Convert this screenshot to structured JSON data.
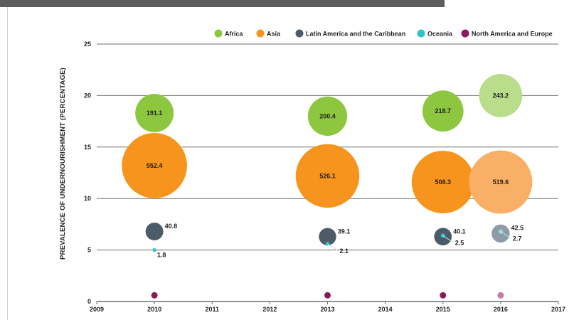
{
  "colors": {
    "Africa": "#8dc63f",
    "Asia": "#f7941d",
    "Latin America and the Caribbean": "#4b5b68",
    "Oceania": "#2ec4c4",
    "North America and Europe": "#8b1a5c",
    "Africa_proj": "#b9dd8b",
    "Asia_proj": "#f9b066",
    "Latin America and the Caribbean_proj": "#8e9aa6",
    "Oceania_proj": "#88dede",
    "North America and Europe_proj": "#c67aa6"
  },
  "chart_data": {
    "type": "scatter",
    "subtype": "bubble",
    "title": "",
    "xlabel": "",
    "ylabel": "PREVALENCE OF UNDERNOURISHMENT (PERCENTAGE)",
    "x_ticks": [
      "2009",
      "2010",
      "2011",
      "2012",
      "2013",
      "2014",
      "2015",
      "2016",
      "2017"
    ],
    "y_ticks": [
      "0",
      "5",
      "10",
      "15",
      "20",
      "25"
    ],
    "xlim": [
      2009,
      2017
    ],
    "ylim": [
      0,
      25
    ],
    "grid": true,
    "legend_position": "top-right",
    "bubble_size_meaning": "number of undernourished people (millions)",
    "projected_year": 2016,
    "series": [
      {
        "name": "Africa",
        "points": [
          {
            "x": 2010,
            "y": 18.3,
            "size": 191.1,
            "label": "191.1"
          },
          {
            "x": 2013,
            "y": 18.0,
            "size": 200.4,
            "label": "200.4"
          },
          {
            "x": 2015,
            "y": 18.5,
            "size": 218.7,
            "label": "218.7"
          },
          {
            "x": 2016,
            "y": 20.0,
            "size": 243.2,
            "label": "243.2"
          }
        ]
      },
      {
        "name": "Asia",
        "points": [
          {
            "x": 2010,
            "y": 13.2,
            "size": 552.4,
            "label": "552.4"
          },
          {
            "x": 2013,
            "y": 12.2,
            "size": 526.1,
            "label": "526.1"
          },
          {
            "x": 2015,
            "y": 11.6,
            "size": 508.3,
            "label": "508.3"
          },
          {
            "x": 2016,
            "y": 11.6,
            "size": 519.6,
            "label": "519.6"
          }
        ]
      },
      {
        "name": "Latin America and the Caribbean",
        "points": [
          {
            "x": 2010,
            "y": 6.8,
            "size": 40.8,
            "label": "40.8"
          },
          {
            "x": 2013,
            "y": 6.3,
            "size": 39.1,
            "label": "39.1"
          },
          {
            "x": 2015,
            "y": 6.3,
            "size": 40.1,
            "label": "40.1"
          },
          {
            "x": 2016,
            "y": 6.6,
            "size": 42.5,
            "label": "42.5"
          }
        ]
      },
      {
        "name": "Oceania",
        "points": [
          {
            "x": 2010,
            "y": 5.0,
            "size": 1.8,
            "label": "1.8"
          },
          {
            "x": 2013,
            "y": 5.6,
            "size": 2.1,
            "label": "2.1"
          },
          {
            "x": 2015,
            "y": 6.4,
            "size": 2.5,
            "label": "2.5"
          },
          {
            "x": 2016,
            "y": 6.8,
            "size": 2.7,
            "label": "2.7"
          }
        ]
      },
      {
        "name": "North America and Europe",
        "points": [
          {
            "x": 2010,
            "y": 0.6,
            "size": 0,
            "label": ""
          },
          {
            "x": 2013,
            "y": 0.6,
            "size": 0,
            "label": ""
          },
          {
            "x": 2015,
            "y": 0.6,
            "size": 0,
            "label": ""
          },
          {
            "x": 2016,
            "y": 0.6,
            "size": 0,
            "label": ""
          }
        ]
      }
    ]
  }
}
